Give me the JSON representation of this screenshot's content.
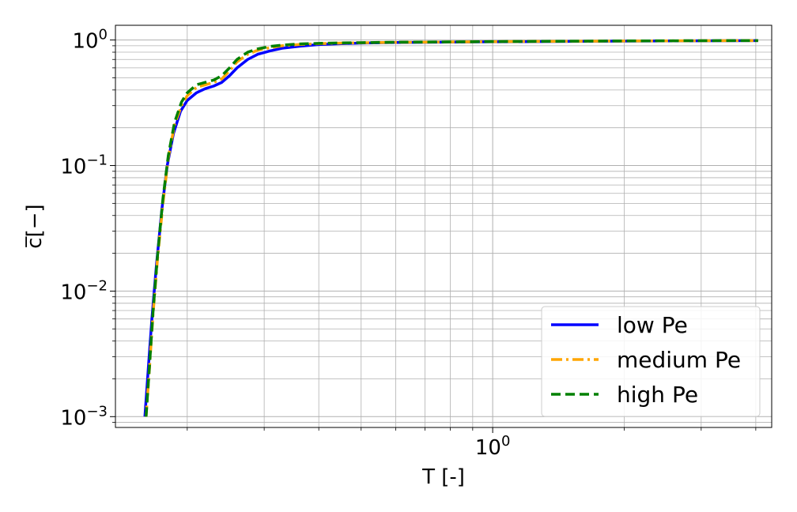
{
  "chart_data": {
    "type": "line",
    "title": "",
    "xlabel": "T [-]",
    "ylabel": "c̅[−]",
    "xscale": "log",
    "yscale": "log",
    "xlim": [
      0.137,
      4.35
    ],
    "ylim": [
      0.00082,
      1.31
    ],
    "grid": true,
    "grid_minor": true,
    "legend_position": "lower-right",
    "x_ticks": [
      {
        "value": 1.0,
        "label": "10",
        "exp": "0"
      }
    ],
    "y_ticks": [
      {
        "value": 0.001,
        "label": "10",
        "exp": "−3"
      },
      {
        "value": 0.01,
        "label": "10",
        "exp": "−2"
      },
      {
        "value": 0.1,
        "label": "10",
        "exp": "−1"
      },
      {
        "value": 1.0,
        "label": "10",
        "exp": "0"
      }
    ],
    "series": [
      {
        "name": "low Pe",
        "color": "#0000ff",
        "dash": "solid",
        "x": [
          0.16,
          0.163,
          0.166,
          0.17,
          0.175,
          0.18,
          0.186,
          0.193,
          0.2,
          0.21,
          0.22,
          0.23,
          0.24,
          0.25,
          0.26,
          0.275,
          0.29,
          0.31,
          0.33,
          0.36,
          0.4,
          0.45,
          0.5,
          0.6,
          0.8,
          1.0,
          1.5,
          2.0,
          3.0,
          4.05
        ],
        "y": [
          0.001,
          0.0025,
          0.006,
          0.016,
          0.045,
          0.1,
          0.18,
          0.27,
          0.33,
          0.38,
          0.41,
          0.43,
          0.46,
          0.52,
          0.6,
          0.7,
          0.77,
          0.82,
          0.86,
          0.89,
          0.92,
          0.935,
          0.945,
          0.955,
          0.963,
          0.968,
          0.975,
          0.98,
          0.985,
          0.99
        ]
      },
      {
        "name": "medium Pe",
        "color": "#ffa500",
        "dash": "dashdot",
        "x": [
          0.161,
          0.164,
          0.167,
          0.171,
          0.176,
          0.181,
          0.187,
          0.194,
          0.2,
          0.21,
          0.22,
          0.23,
          0.24,
          0.25,
          0.26,
          0.275,
          0.29,
          0.31,
          0.33,
          0.36,
          0.4,
          0.45,
          0.5,
          0.6,
          0.8,
          1.0,
          1.5,
          2.0,
          3.0,
          4.05
        ],
        "y": [
          0.001,
          0.0025,
          0.0065,
          0.018,
          0.05,
          0.115,
          0.21,
          0.3,
          0.36,
          0.42,
          0.44,
          0.46,
          0.49,
          0.57,
          0.67,
          0.77,
          0.83,
          0.87,
          0.9,
          0.92,
          0.935,
          0.945,
          0.95,
          0.958,
          0.965,
          0.97,
          0.977,
          0.982,
          0.987,
          0.99
        ]
      },
      {
        "name": "high Pe",
        "color": "#008000",
        "dash": "dashed",
        "x": [
          0.161,
          0.164,
          0.167,
          0.171,
          0.176,
          0.181,
          0.187,
          0.194,
          0.2,
          0.21,
          0.22,
          0.23,
          0.24,
          0.25,
          0.26,
          0.275,
          0.29,
          0.31,
          0.33,
          0.36,
          0.4,
          0.45,
          0.5,
          0.6,
          0.8,
          1.0,
          1.5,
          2.0,
          3.0,
          4.05
        ],
        "y": [
          0.001,
          0.0026,
          0.0068,
          0.019,
          0.055,
          0.12,
          0.22,
          0.32,
          0.38,
          0.44,
          0.46,
          0.48,
          0.52,
          0.6,
          0.7,
          0.8,
          0.85,
          0.89,
          0.91,
          0.93,
          0.94,
          0.948,
          0.953,
          0.96,
          0.966,
          0.971,
          0.978,
          0.983,
          0.988,
          0.99
        ]
      }
    ]
  }
}
